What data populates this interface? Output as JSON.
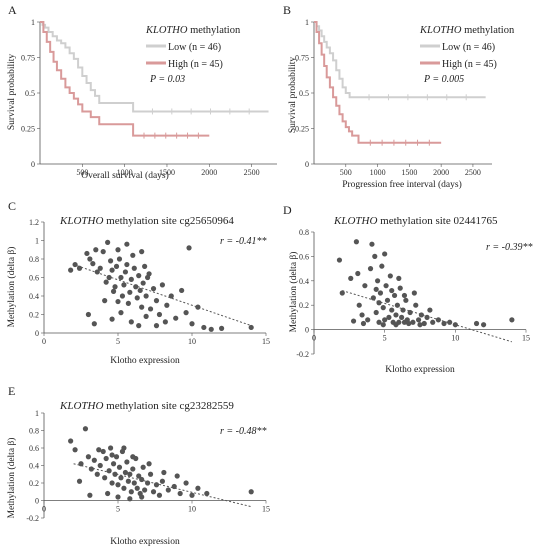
{
  "chart_data": [
    {
      "panel": "A",
      "type": "line",
      "legend_title": "KLOTHO methylation",
      "xlabel": "Overall survival (days)",
      "ylabel": "Survival probability",
      "xlim": [
        0,
        2800
      ],
      "ylim": [
        0,
        1
      ],
      "xticks": [
        "500",
        "1000",
        "1500",
        "2000",
        "2500"
      ],
      "yticks": [
        "0",
        "0.25",
        "0.5",
        "0.75",
        "1"
      ],
      "stat_text": "P = 0.03",
      "legend": "top-right",
      "series": [
        {
          "name": "Low (n = 46)",
          "color": "#cfcfcf",
          "x": [
            0,
            30,
            60,
            100,
            150,
            200,
            250,
            300,
            350,
            400,
            450,
            500,
            550,
            600,
            650,
            700,
            750,
            1100,
            2700
          ],
          "y": [
            1,
            0.98,
            0.96,
            0.93,
            0.9,
            0.87,
            0.85,
            0.82,
            0.78,
            0.74,
            0.68,
            0.62,
            0.57,
            0.52,
            0.48,
            0.43,
            0.43,
            0.37,
            0.37
          ]
        },
        {
          "name": "High (n = 45)",
          "color": "#d99a9a",
          "x": [
            0,
            40,
            80,
            120,
            160,
            200,
            250,
            300,
            350,
            400,
            450,
            500,
            600,
            700,
            800,
            1100,
            2000
          ],
          "y": [
            1,
            0.93,
            0.86,
            0.79,
            0.72,
            0.66,
            0.6,
            0.54,
            0.5,
            0.46,
            0.42,
            0.37,
            0.33,
            0.28,
            0.28,
            0.2,
            0.2
          ]
        }
      ]
    },
    {
      "panel": "B",
      "type": "line",
      "legend_title": "KLOTHO methylation",
      "xlabel": "Progression free interval (days)",
      "ylabel": "Survival probability",
      "xlim": [
        0,
        2800
      ],
      "ylim": [
        0,
        1
      ],
      "xticks": [
        "500",
        "1000",
        "1500",
        "2000",
        "2500"
      ],
      "yticks": [
        "0",
        "0.25",
        "0.5",
        "0.75",
        "1"
      ],
      "stat_text": "P = 0.005",
      "legend": "top-right",
      "series": [
        {
          "name": "Low (n = 46)",
          "color": "#cfcfcf",
          "x": [
            0,
            40,
            80,
            120,
            160,
            200,
            250,
            300,
            350,
            400,
            450,
            500,
            560,
            2700
          ],
          "y": [
            1,
            0.97,
            0.94,
            0.9,
            0.86,
            0.82,
            0.78,
            0.73,
            0.66,
            0.6,
            0.54,
            0.5,
            0.47,
            0.47
          ]
        },
        {
          "name": "High (n = 45)",
          "color": "#d99a9a",
          "x": [
            0,
            40,
            80,
            120,
            160,
            200,
            250,
            300,
            350,
            400,
            450,
            500,
            550,
            600,
            700,
            2000
          ],
          "y": [
            1,
            0.93,
            0.85,
            0.77,
            0.69,
            0.61,
            0.54,
            0.47,
            0.41,
            0.35,
            0.3,
            0.26,
            0.23,
            0.2,
            0.15,
            0.15
          ]
        }
      ]
    },
    {
      "panel": "C",
      "type": "scatter",
      "title": "KLOTHO methylation site cg25650964",
      "xlabel": "Klotho expression",
      "ylabel": "Methylation (delta β)",
      "xlim": [
        0,
        15
      ],
      "ylim": [
        0,
        1.2
      ],
      "xticks": [
        "0",
        "5",
        "10",
        "15"
      ],
      "yticks": [
        "0",
        "0.2",
        "0.4",
        "0.6",
        "0.8",
        "1",
        "1.2"
      ],
      "stat_text": "r = -0.41**",
      "trendline": {
        "x": [
          2,
          14
        ],
        "y": [
          0.74,
          0.08
        ]
      },
      "points": [
        [
          1.8,
          0.68
        ],
        [
          2.1,
          0.74
        ],
        [
          2.4,
          0.7
        ],
        [
          2.9,
          0.86
        ],
        [
          3.1,
          0.8
        ],
        [
          3.3,
          0.75
        ],
        [
          3.5,
          0.9
        ],
        [
          3.6,
          0.66
        ],
        [
          3.8,
          0.7
        ],
        [
          4.0,
          0.88
        ],
        [
          4.2,
          0.55
        ],
        [
          4.4,
          0.6
        ],
        [
          4.5,
          0.78
        ],
        [
          4.6,
          0.68
        ],
        [
          4.7,
          0.45
        ],
        [
          4.8,
          0.5
        ],
        [
          4.9,
          0.72
        ],
        [
          5.0,
          0.9
        ],
        [
          5.1,
          0.8
        ],
        [
          5.2,
          0.6
        ],
        [
          5.3,
          0.4
        ],
        [
          5.4,
          0.52
        ],
        [
          5.5,
          0.66
        ],
        [
          5.6,
          0.74
        ],
        [
          5.7,
          0.32
        ],
        [
          5.8,
          0.44
        ],
        [
          5.9,
          0.58
        ],
        [
          6.0,
          0.84
        ],
        [
          6.1,
          0.7
        ],
        [
          6.2,
          0.5
        ],
        [
          6.3,
          0.38
        ],
        [
          6.4,
          0.62
        ],
        [
          6.5,
          0.46
        ],
        [
          6.6,
          0.28
        ],
        [
          6.7,
          0.54
        ],
        [
          6.8,
          0.72
        ],
        [
          6.9,
          0.4
        ],
        [
          7.0,
          0.6
        ],
        [
          7.2,
          0.26
        ],
        [
          7.4,
          0.48
        ],
        [
          7.6,
          0.35
        ],
        [
          7.8,
          0.2
        ],
        [
          8.0,
          0.52
        ],
        [
          8.3,
          0.3
        ],
        [
          8.6,
          0.4
        ],
        [
          8.9,
          0.16
        ],
        [
          9.3,
          0.46
        ],
        [
          9.6,
          0.22
        ],
        [
          10.0,
          0.1
        ],
        [
          10.4,
          0.28
        ],
        [
          10.8,
          0.06
        ],
        [
          11.3,
          0.04
        ],
        [
          12.0,
          0.05
        ],
        [
          14.0,
          0.06
        ],
        [
          3.0,
          0.2
        ],
        [
          3.4,
          0.1
        ],
        [
          4.1,
          0.35
        ],
        [
          4.6,
          0.15
        ],
        [
          5.2,
          0.22
        ],
        [
          5.9,
          0.12
        ],
        [
          6.4,
          0.08
        ],
        [
          6.9,
          0.18
        ],
        [
          7.6,
          0.08
        ],
        [
          8.2,
          0.12
        ],
        [
          9.8,
          0.92
        ],
        [
          5.6,
          0.96
        ],
        [
          4.3,
          0.98
        ],
        [
          6.6,
          0.88
        ],
        [
          5.0,
          0.34
        ],
        [
          7.1,
          0.64
        ]
      ]
    },
    {
      "panel": "D",
      "type": "scatter",
      "title": "KLOTHO methylation site 02441765",
      "xlabel": "Klotho expression",
      "ylabel": "Methylation (delta β)",
      "xlim": [
        0,
        15
      ],
      "ylim": [
        -0.2,
        0.8
      ],
      "xticks": [
        "0",
        "5",
        "10",
        "15"
      ],
      "yticks": [
        "-0.2",
        "0",
        "0.2",
        "0.4",
        "0.6",
        "0.8"
      ],
      "stat_text": "r = -0.39**",
      "trendline": {
        "x": [
          2,
          14
        ],
        "y": [
          0.32,
          -0.1
        ]
      },
      "points": [
        [
          1.8,
          0.57
        ],
        [
          2.0,
          0.3
        ],
        [
          2.6,
          0.42
        ],
        [
          3.0,
          0.72
        ],
        [
          3.2,
          0.2
        ],
        [
          3.4,
          0.12
        ],
        [
          3.6,
          0.36
        ],
        [
          3.8,
          0.08
        ],
        [
          4.0,
          0.5
        ],
        [
          4.2,
          0.26
        ],
        [
          4.3,
          0.6
        ],
        [
          4.4,
          0.14
        ],
        [
          4.5,
          0.4
        ],
        [
          4.6,
          0.06
        ],
        [
          4.7,
          0.3
        ],
        [
          4.8,
          0.52
        ],
        [
          4.9,
          0.18
        ],
        [
          5.0,
          0.08
        ],
        [
          5.1,
          0.36
        ],
        [
          5.2,
          0.24
        ],
        [
          5.3,
          0.1
        ],
        [
          5.4,
          0.44
        ],
        [
          5.5,
          0.16
        ],
        [
          5.6,
          0.06
        ],
        [
          5.7,
          0.28
        ],
        [
          5.8,
          0.12
        ],
        [
          5.9,
          0.2
        ],
        [
          6.0,
          0.06
        ],
        [
          6.1,
          0.34
        ],
        [
          6.2,
          0.1
        ],
        [
          6.3,
          0.16
        ],
        [
          6.4,
          0.06
        ],
        [
          6.5,
          0.24
        ],
        [
          6.6,
          0.08
        ],
        [
          6.8,
          0.14
        ],
        [
          7.0,
          0.06
        ],
        [
          7.2,
          0.2
        ],
        [
          7.4,
          0.08
        ],
        [
          7.6,
          0.12
        ],
        [
          7.8,
          0.05
        ],
        [
          8.0,
          0.1
        ],
        [
          8.4,
          0.06
        ],
        [
          8.8,
          0.08
        ],
        [
          9.2,
          0.05
        ],
        [
          9.6,
          0.06
        ],
        [
          10.0,
          0.04
        ],
        [
          11.5,
          0.05
        ],
        [
          12.0,
          0.04
        ],
        [
          14.0,
          0.08
        ],
        [
          4.1,
          0.7
        ],
        [
          5.0,
          0.62
        ],
        [
          3.1,
          0.46
        ],
        [
          2.8,
          0.07
        ],
        [
          4.6,
          0.22
        ],
        [
          5.5,
          0.32
        ],
        [
          6.4,
          0.28
        ],
        [
          7.1,
          0.3
        ],
        [
          8.2,
          0.16
        ],
        [
          3.5,
          0.05
        ],
        [
          4.9,
          0.04
        ],
        [
          5.8,
          0.04
        ],
        [
          6.7,
          0.05
        ],
        [
          7.5,
          0.04
        ],
        [
          4.4,
          0.33
        ],
        [
          6.0,
          0.42
        ]
      ]
    },
    {
      "panel": "E",
      "type": "scatter",
      "title": "KLOTHO methylation site cg23282559",
      "xlabel": "Klotho expression",
      "ylabel": "Methylation (delta β)",
      "xlim": [
        0,
        15
      ],
      "ylim": [
        -0.2,
        1
      ],
      "xticks": [
        "0",
        "5",
        "10",
        "15"
      ],
      "yticks": [
        "-0.2",
        "0",
        "0.2",
        "0.4",
        "0.6",
        "0.8",
        "1"
      ],
      "stat_text": "r = -0.48**",
      "trendline": {
        "x": [
          2,
          14
        ],
        "y": [
          0.42,
          -0.07
        ]
      },
      "points": [
        [
          1.8,
          0.68
        ],
        [
          2.1,
          0.58
        ],
        [
          2.5,
          0.42
        ],
        [
          2.8,
          0.82
        ],
        [
          3.0,
          0.5
        ],
        [
          3.2,
          0.36
        ],
        [
          3.4,
          0.46
        ],
        [
          3.6,
          0.3
        ],
        [
          3.8,
          0.4
        ],
        [
          4.0,
          0.56
        ],
        [
          4.1,
          0.26
        ],
        [
          4.2,
          0.48
        ],
        [
          4.4,
          0.34
        ],
        [
          4.5,
          0.6
        ],
        [
          4.6,
          0.2
        ],
        [
          4.7,
          0.42
        ],
        [
          4.8,
          0.3
        ],
        [
          4.9,
          0.5
        ],
        [
          5.0,
          0.18
        ],
        [
          5.1,
          0.38
        ],
        [
          5.2,
          0.26
        ],
        [
          5.3,
          0.56
        ],
        [
          5.4,
          0.14
        ],
        [
          5.5,
          0.32
        ],
        [
          5.6,
          0.44
        ],
        [
          5.7,
          0.22
        ],
        [
          5.8,
          0.3
        ],
        [
          5.9,
          0.1
        ],
        [
          6.0,
          0.36
        ],
        [
          6.1,
          0.2
        ],
        [
          6.2,
          0.48
        ],
        [
          6.3,
          0.14
        ],
        [
          6.4,
          0.28
        ],
        [
          6.5,
          0.08
        ],
        [
          6.6,
          0.24
        ],
        [
          6.7,
          0.38
        ],
        [
          6.8,
          0.12
        ],
        [
          7.0,
          0.2
        ],
        [
          7.2,
          0.3
        ],
        [
          7.4,
          0.1
        ],
        [
          7.6,
          0.18
        ],
        [
          7.8,
          0.06
        ],
        [
          8.0,
          0.22
        ],
        [
          8.4,
          0.12
        ],
        [
          8.8,
          0.16
        ],
        [
          9.2,
          0.08
        ],
        [
          9.6,
          0.2
        ],
        [
          10.0,
          0.06
        ],
        [
          10.4,
          0.14
        ],
        [
          11.0,
          0.08
        ],
        [
          14.0,
          0.1
        ],
        [
          3.1,
          0.06
        ],
        [
          4.3,
          0.08
        ],
        [
          5.0,
          0.04
        ],
        [
          5.8,
          0.02
        ],
        [
          6.6,
          0.04
        ],
        [
          4.6,
          0.52
        ],
        [
          5.4,
          0.6
        ],
        [
          3.7,
          0.58
        ],
        [
          6.0,
          0.5
        ],
        [
          7.1,
          0.42
        ],
        [
          8.1,
          0.32
        ],
        [
          9.0,
          0.28
        ],
        [
          2.4,
          0.22
        ]
      ]
    }
  ]
}
